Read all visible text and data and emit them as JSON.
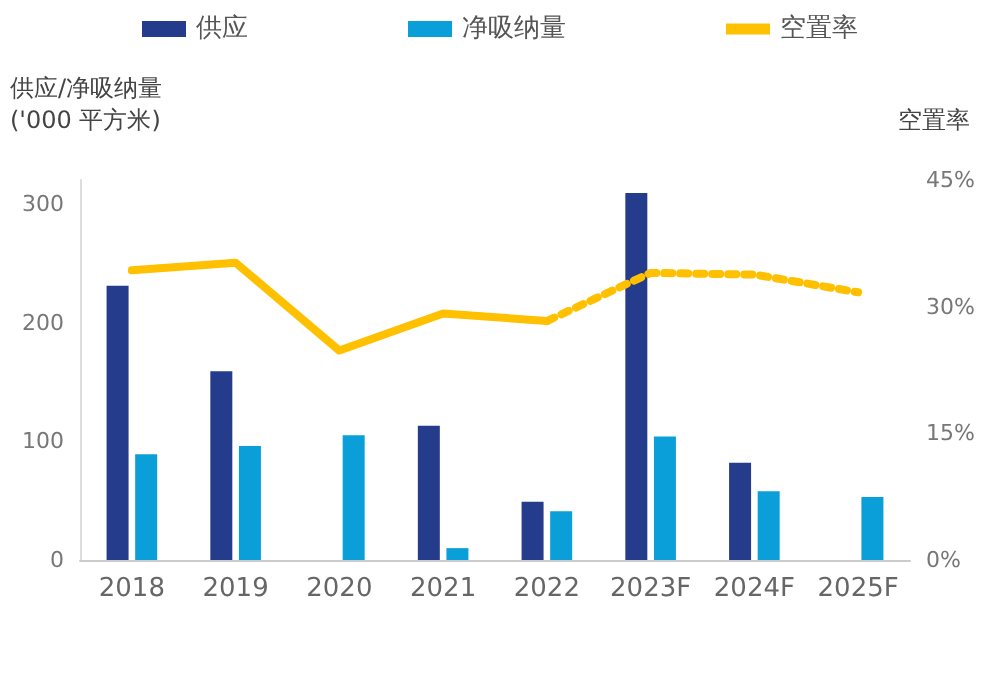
{
  "chart_data": {
    "type": "bar",
    "ylabel": "供应/净吸纳量\n('000 平方米)",
    "y2label": "空置率",
    "categories": [
      "2018",
      "2019",
      "2020",
      "2021",
      "2022",
      "2023F",
      "2024F",
      "2025F"
    ],
    "series": [
      {
        "name": "供应",
        "color": "#253c8c",
        "values": [
          231,
          159,
          null,
          113,
          49,
          309,
          82,
          null
        ]
      },
      {
        "name": "净吸纳量",
        "color": "#0a9fd8",
        "values": [
          89,
          96,
          105,
          10,
          41,
          104,
          58,
          53
        ]
      },
      {
        "name": "空置率",
        "type": "line",
        "axis": "y2",
        "color": "#ffc000",
        "line_style": "solid",
        "values": [
          34.3,
          35.2,
          24.8,
          29.2,
          28.3,
          null,
          null,
          null
        ]
      },
      {
        "type": "line",
        "axis": "y2",
        "color": "#ffc000",
        "line_style": "dotted",
        "values": [
          null,
          null,
          null,
          null,
          28.3,
          34.0,
          33.8,
          31.7
        ]
      }
    ],
    "ylim": [
      0,
      320
    ],
    "yticks": [
      0,
      100,
      200,
      300
    ],
    "y2lim": [
      0,
      45
    ],
    "y2ticks": [
      {
        "value": 0,
        "label": "0%"
      },
      {
        "value": 15,
        "label": "15%"
      },
      {
        "value": 30,
        "label": "30%"
      },
      {
        "value": 45,
        "label": "45%"
      }
    ],
    "legend": "top",
    "marker": "none"
  }
}
